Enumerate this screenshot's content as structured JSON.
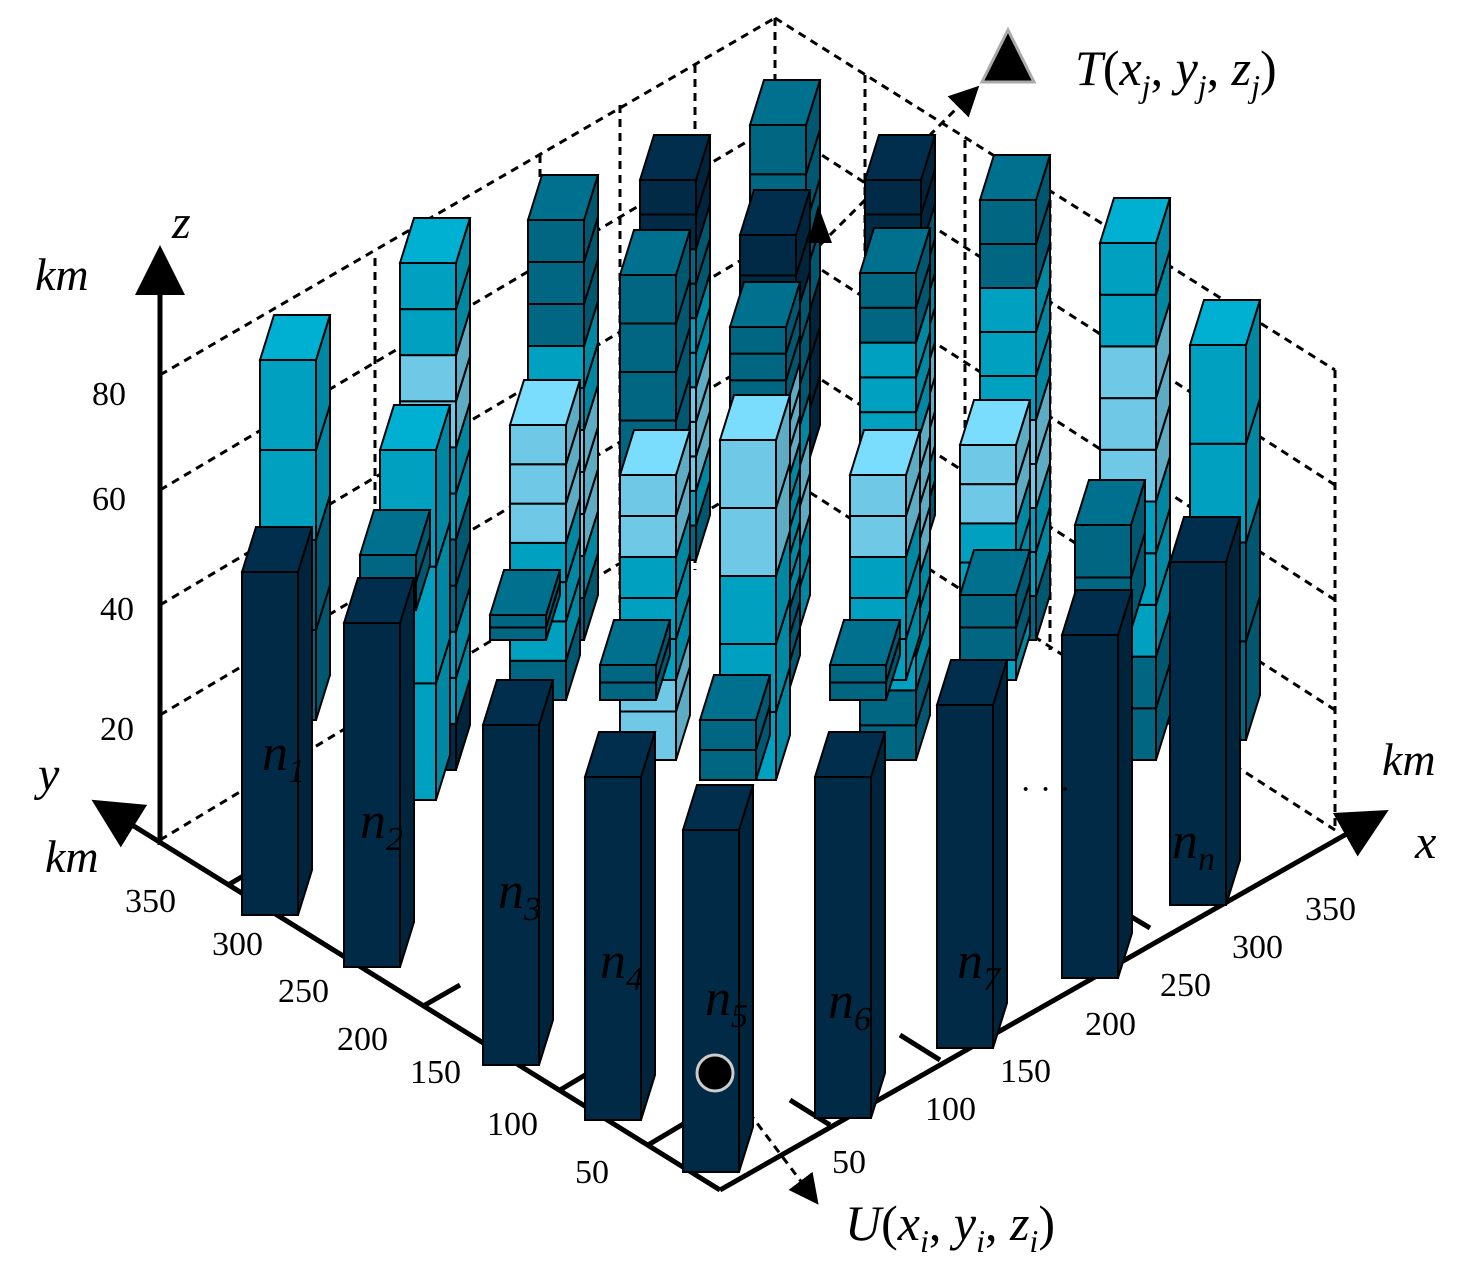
{
  "axes": {
    "z": {
      "name": "z",
      "unit": "km",
      "ticks": [
        "20",
        "40",
        "60",
        "80"
      ]
    },
    "y": {
      "name": "y",
      "unit": "km",
      "ticks": [
        "50",
        "100",
        "150",
        "200",
        "250",
        "300",
        "350"
      ]
    },
    "x": {
      "name": "x",
      "unit": "km",
      "ticks": [
        "50",
        "100",
        "150",
        "200",
        "250",
        "300",
        "350"
      ]
    }
  },
  "columns": [
    {
      "name": "n",
      "sub": "1"
    },
    {
      "name": "n",
      "sub": "2"
    },
    {
      "name": "n",
      "sub": "3"
    },
    {
      "name": "n",
      "sub": "4"
    },
    {
      "name": "n",
      "sub": "5"
    },
    {
      "name": "n",
      "sub": "6"
    },
    {
      "name": "n",
      "sub": "7"
    },
    {
      "name": "n",
      "sub": "n"
    }
  ],
  "ellipsis": "· · ·",
  "target_point": {
    "label": "T",
    "x": "x",
    "y": "y",
    "z": "z",
    "sub": "j"
  },
  "user_point": {
    "label": "U",
    "x": "x",
    "y": "y",
    "z": "z",
    "sub": "i"
  },
  "colors": {
    "darkest": "#002a45",
    "dark": "#006682",
    "medium": "#00a0c0",
    "light": "#6fc9e6",
    "grid": "#000000"
  }
}
